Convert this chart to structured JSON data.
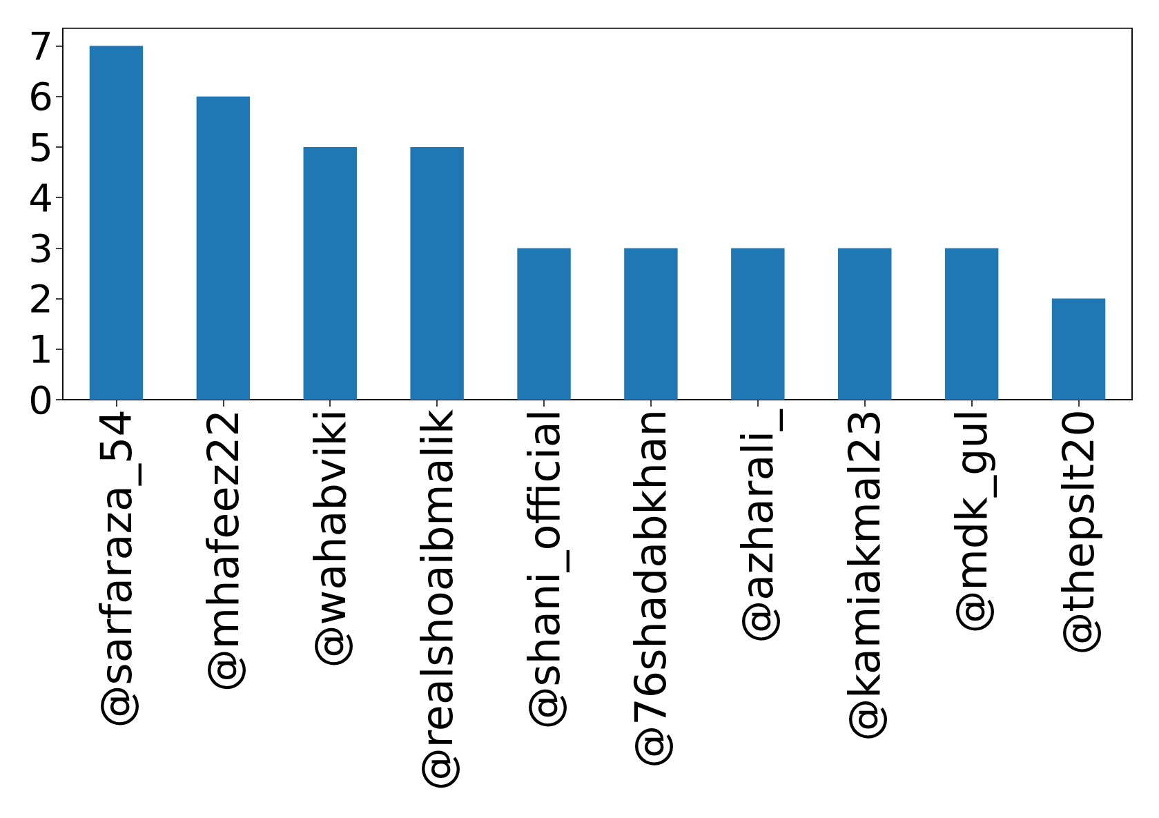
{
  "chart_data": {
    "type": "bar",
    "categories": [
      "@sarfaraza_54",
      "@mhafeez22",
      "@wahabviki",
      "@realshoaibmalik",
      "@shani_official",
      "@76shadabkhan",
      "@azharali_",
      "@kamiakmal23",
      "@mdk_gul",
      "@thepslt20"
    ],
    "values": [
      7,
      6,
      5,
      5,
      3,
      3,
      3,
      3,
      3,
      2
    ],
    "color": "#1f77b4",
    "ylim": [
      0,
      7.35
    ],
    "yticks": [
      0,
      1,
      2,
      3,
      4,
      5,
      6,
      7
    ],
    "grid": false
  }
}
